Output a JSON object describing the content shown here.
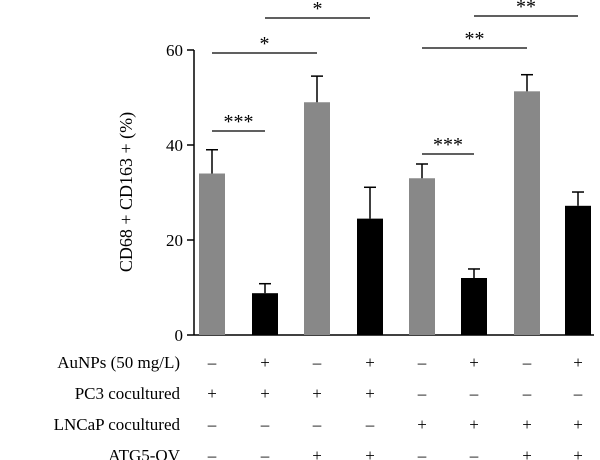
{
  "chart_data": {
    "type": "bar",
    "ylabel": "CD68 + CD163 + (%)",
    "ylim": [
      0,
      60
    ],
    "yticks": [
      0,
      20,
      40,
      60
    ],
    "values": [
      34,
      8.8,
      49,
      24.5,
      33,
      12,
      51.3,
      27.2
    ],
    "errors": [
      5,
      2,
      5.5,
      6.6,
      3,
      1.9,
      3.5,
      2.9
    ],
    "colors": [
      "#888888",
      "#000000",
      "#888888",
      "#000000",
      "#888888",
      "#000000",
      "#888888",
      "#000000"
    ],
    "conditions": [
      {
        "label": "AuNPs (50 mg/L)",
        "signs": [
          "–",
          "+",
          "–",
          "+",
          "–",
          "+",
          "–",
          "+"
        ]
      },
      {
        "label": "PC3 cocultured",
        "signs": [
          "+",
          "+",
          "+",
          "+",
          "–",
          "–",
          "–",
          "–"
        ]
      },
      {
        "label": "LNCaP cocultured",
        "signs": [
          "–",
          "–",
          "–",
          "–",
          "+",
          "+",
          "+",
          "+"
        ]
      },
      {
        "label": "ATG5-OV",
        "signs": [
          "–",
          "–",
          "+",
          "+",
          "–",
          "–",
          "+",
          "+"
        ]
      }
    ],
    "significance": [
      {
        "from": 0,
        "to": 1,
        "label": "***"
      },
      {
        "from": 0,
        "to": 2,
        "label": "*"
      },
      {
        "from": 1,
        "to": 3,
        "label": "*"
      },
      {
        "from": 4,
        "to": 5,
        "label": "***"
      },
      {
        "from": 4,
        "to": 6,
        "label": "**"
      },
      {
        "from": 5,
        "to": 7,
        "label": "**"
      }
    ]
  }
}
